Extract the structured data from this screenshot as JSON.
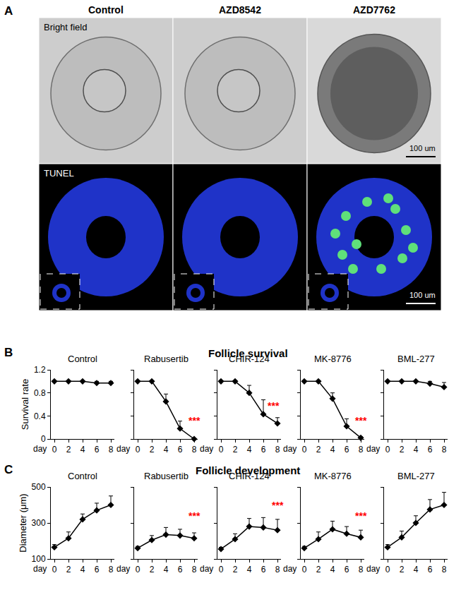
{
  "figure": {
    "panel_a": {
      "label": "A",
      "columns": [
        "Control",
        "AZD8542",
        "AZD7762"
      ],
      "rows": [
        "Bright field",
        "TUNEL"
      ],
      "scale_bar": "100 um"
    },
    "panel_b": {
      "label": "B",
      "title": "Follicle survival"
    },
    "panel_c": {
      "label": "C",
      "title": "Follicle development"
    }
  },
  "chart_data": [
    {
      "panel": "B",
      "type": "line",
      "title": "Control",
      "x_label": "day",
      "y_label": "Survival rate",
      "color": "#000000",
      "marker": "diamond",
      "x": [
        0,
        2,
        4,
        6,
        8
      ],
      "values": [
        1,
        1,
        1,
        0.97,
        0.97
      ],
      "error": [
        0,
        0,
        0,
        0.03,
        0.03
      ],
      "xlim": [
        -0.5,
        8.5
      ],
      "xticks": [
        0,
        2,
        4,
        6,
        8
      ],
      "ylim": [
        0,
        1.2
      ],
      "yticks": [
        0,
        0.4,
        0.8,
        1.2
      ],
      "grid": false
    },
    {
      "panel": "B",
      "type": "line",
      "title": "Rabusertib",
      "x_label": "day",
      "color": "#000000",
      "marker": "diamond",
      "tick_labels": "x",
      "x": [
        0,
        2,
        4,
        6,
        8
      ],
      "values": [
        1,
        1,
        0.65,
        0.18,
        0
      ],
      "error": [
        0,
        0,
        0.13,
        0.13,
        0
      ],
      "xlim": [
        -0.5,
        8.5
      ],
      "xticks": [
        0,
        2,
        4,
        6,
        8
      ],
      "ylim": [
        0,
        1.2
      ],
      "yticks": [
        0,
        0.4,
        0.8,
        1.2
      ],
      "grid": false,
      "annotations": [
        {
          "text": "***",
          "x": 8,
          "y": 0.2,
          "color": "#ff0000"
        }
      ]
    },
    {
      "panel": "B",
      "type": "line",
      "title": "CHIR-124",
      "x_label": "day",
      "color": "#000000",
      "marker": "diamond",
      "tick_labels": "x",
      "x": [
        0,
        2,
        4,
        6,
        8
      ],
      "values": [
        1,
        1,
        0.8,
        0.43,
        0.27
      ],
      "error": [
        0,
        0,
        0.13,
        0.25,
        0.1
      ],
      "xlim": [
        -0.5,
        8.5
      ],
      "xticks": [
        0,
        2,
        4,
        6,
        8
      ],
      "ylim": [
        0,
        1.2
      ],
      "yticks": [
        0,
        0.4,
        0.8,
        1.2
      ],
      "grid": false,
      "annotations": [
        {
          "text": "***",
          "x": 7.4,
          "y": 0.45,
          "color": "#ff0000"
        }
      ]
    },
    {
      "panel": "B",
      "type": "line",
      "title": "MK-8776",
      "x_label": "day",
      "color": "#000000",
      "marker": "diamond",
      "tick_labels": "x",
      "x": [
        0,
        2,
        4,
        6,
        8
      ],
      "values": [
        1,
        1,
        0.7,
        0.22,
        0.02
      ],
      "error": [
        0,
        0,
        0.1,
        0.13,
        0.02
      ],
      "xlim": [
        -0.5,
        8.5
      ],
      "xticks": [
        0,
        2,
        4,
        6,
        8
      ],
      "ylim": [
        0,
        1.2
      ],
      "yticks": [
        0,
        0.4,
        0.8,
        1.2
      ],
      "grid": false,
      "annotations": [
        {
          "text": "***",
          "x": 8,
          "y": 0.2,
          "color": "#ff0000"
        }
      ]
    },
    {
      "panel": "B",
      "type": "line",
      "title": "BML-277",
      "x_label": "day",
      "color": "#000000",
      "marker": "diamond",
      "tick_labels": "x",
      "x": [
        0,
        2,
        4,
        6,
        8
      ],
      "values": [
        1,
        1,
        1,
        0.96,
        0.9
      ],
      "error": [
        0,
        0,
        0,
        0.04,
        0.08
      ],
      "xlim": [
        -0.5,
        8.5
      ],
      "xticks": [
        0,
        2,
        4,
        6,
        8
      ],
      "ylim": [
        0,
        1.2
      ],
      "yticks": [
        0,
        0.4,
        0.8,
        1.2
      ],
      "grid": false
    },
    {
      "panel": "C",
      "type": "line",
      "title": "Control",
      "x_label": "day",
      "y_label": "Diameter (μm)",
      "color": "#000000",
      "marker": "diamond",
      "x": [
        0,
        2,
        4,
        6,
        8
      ],
      "values": [
        165,
        215,
        320,
        370,
        400
      ],
      "error": [
        15,
        35,
        30,
        40,
        50
      ],
      "xlim": [
        -0.5,
        8.5
      ],
      "xticks": [
        0,
        2,
        4,
        6,
        8
      ],
      "ylim": [
        100,
        500
      ],
      "yticks": [
        100,
        300,
        500
      ],
      "grid": false
    },
    {
      "panel": "C",
      "type": "line",
      "title": "Rabusertib",
      "x_label": "day",
      "color": "#000000",
      "marker": "diamond",
      "tick_labels": "x",
      "x": [
        0,
        2,
        4,
        6,
        8
      ],
      "values": [
        160,
        205,
        235,
        230,
        215
      ],
      "error": [
        10,
        25,
        40,
        35,
        30
      ],
      "xlim": [
        -0.5,
        8.5
      ],
      "xticks": [
        0,
        2,
        4,
        6,
        8
      ],
      "ylim": [
        100,
        500
      ],
      "yticks": [
        100,
        300,
        500
      ],
      "grid": false,
      "annotations": [
        {
          "text": "***",
          "x": 8,
          "y": 300,
          "color": "#ff0000"
        }
      ]
    },
    {
      "panel": "C",
      "type": "line",
      "title": "CHIR-124",
      "x_label": "day",
      "color": "#000000",
      "marker": "diamond",
      "tick_labels": "x",
      "x": [
        0,
        2,
        4,
        6,
        8
      ],
      "values": [
        155,
        210,
        280,
        275,
        260
      ],
      "error": [
        10,
        30,
        45,
        55,
        60
      ],
      "xlim": [
        -0.5,
        8.5
      ],
      "xticks": [
        0,
        2,
        4,
        6,
        8
      ],
      "ylim": [
        100,
        500
      ],
      "yticks": [
        100,
        300,
        500
      ],
      "grid": false,
      "annotations": [
        {
          "text": "***",
          "x": 8,
          "y": 360,
          "color": "#ff0000"
        }
      ]
    },
    {
      "panel": "C",
      "type": "line",
      "title": "MK-8776",
      "x_label": "day",
      "color": "#000000",
      "marker": "diamond",
      "tick_labels": "x",
      "x": [
        0,
        2,
        4,
        6,
        8
      ],
      "values": [
        160,
        210,
        265,
        240,
        220
      ],
      "error": [
        10,
        40,
        45,
        40,
        40
      ],
      "xlim": [
        -0.5,
        8.5
      ],
      "xticks": [
        0,
        2,
        4,
        6,
        8
      ],
      "ylim": [
        100,
        500
      ],
      "yticks": [
        100,
        300,
        500
      ],
      "grid": false,
      "annotations": [
        {
          "text": "***",
          "x": 8,
          "y": 300,
          "color": "#ff0000"
        }
      ]
    },
    {
      "panel": "C",
      "type": "line",
      "title": "BML-277",
      "x_label": "day",
      "color": "#000000",
      "marker": "diamond",
      "tick_labels": "x",
      "x": [
        0,
        2,
        4,
        6,
        8
      ],
      "values": [
        165,
        220,
        300,
        375,
        400
      ],
      "error": [
        15,
        35,
        40,
        55,
        70
      ],
      "xlim": [
        -0.5,
        8.5
      ],
      "xticks": [
        0,
        2,
        4,
        6,
        8
      ],
      "ylim": [
        100,
        500
      ],
      "yticks": [
        100,
        300,
        500
      ],
      "grid": false
    }
  ]
}
